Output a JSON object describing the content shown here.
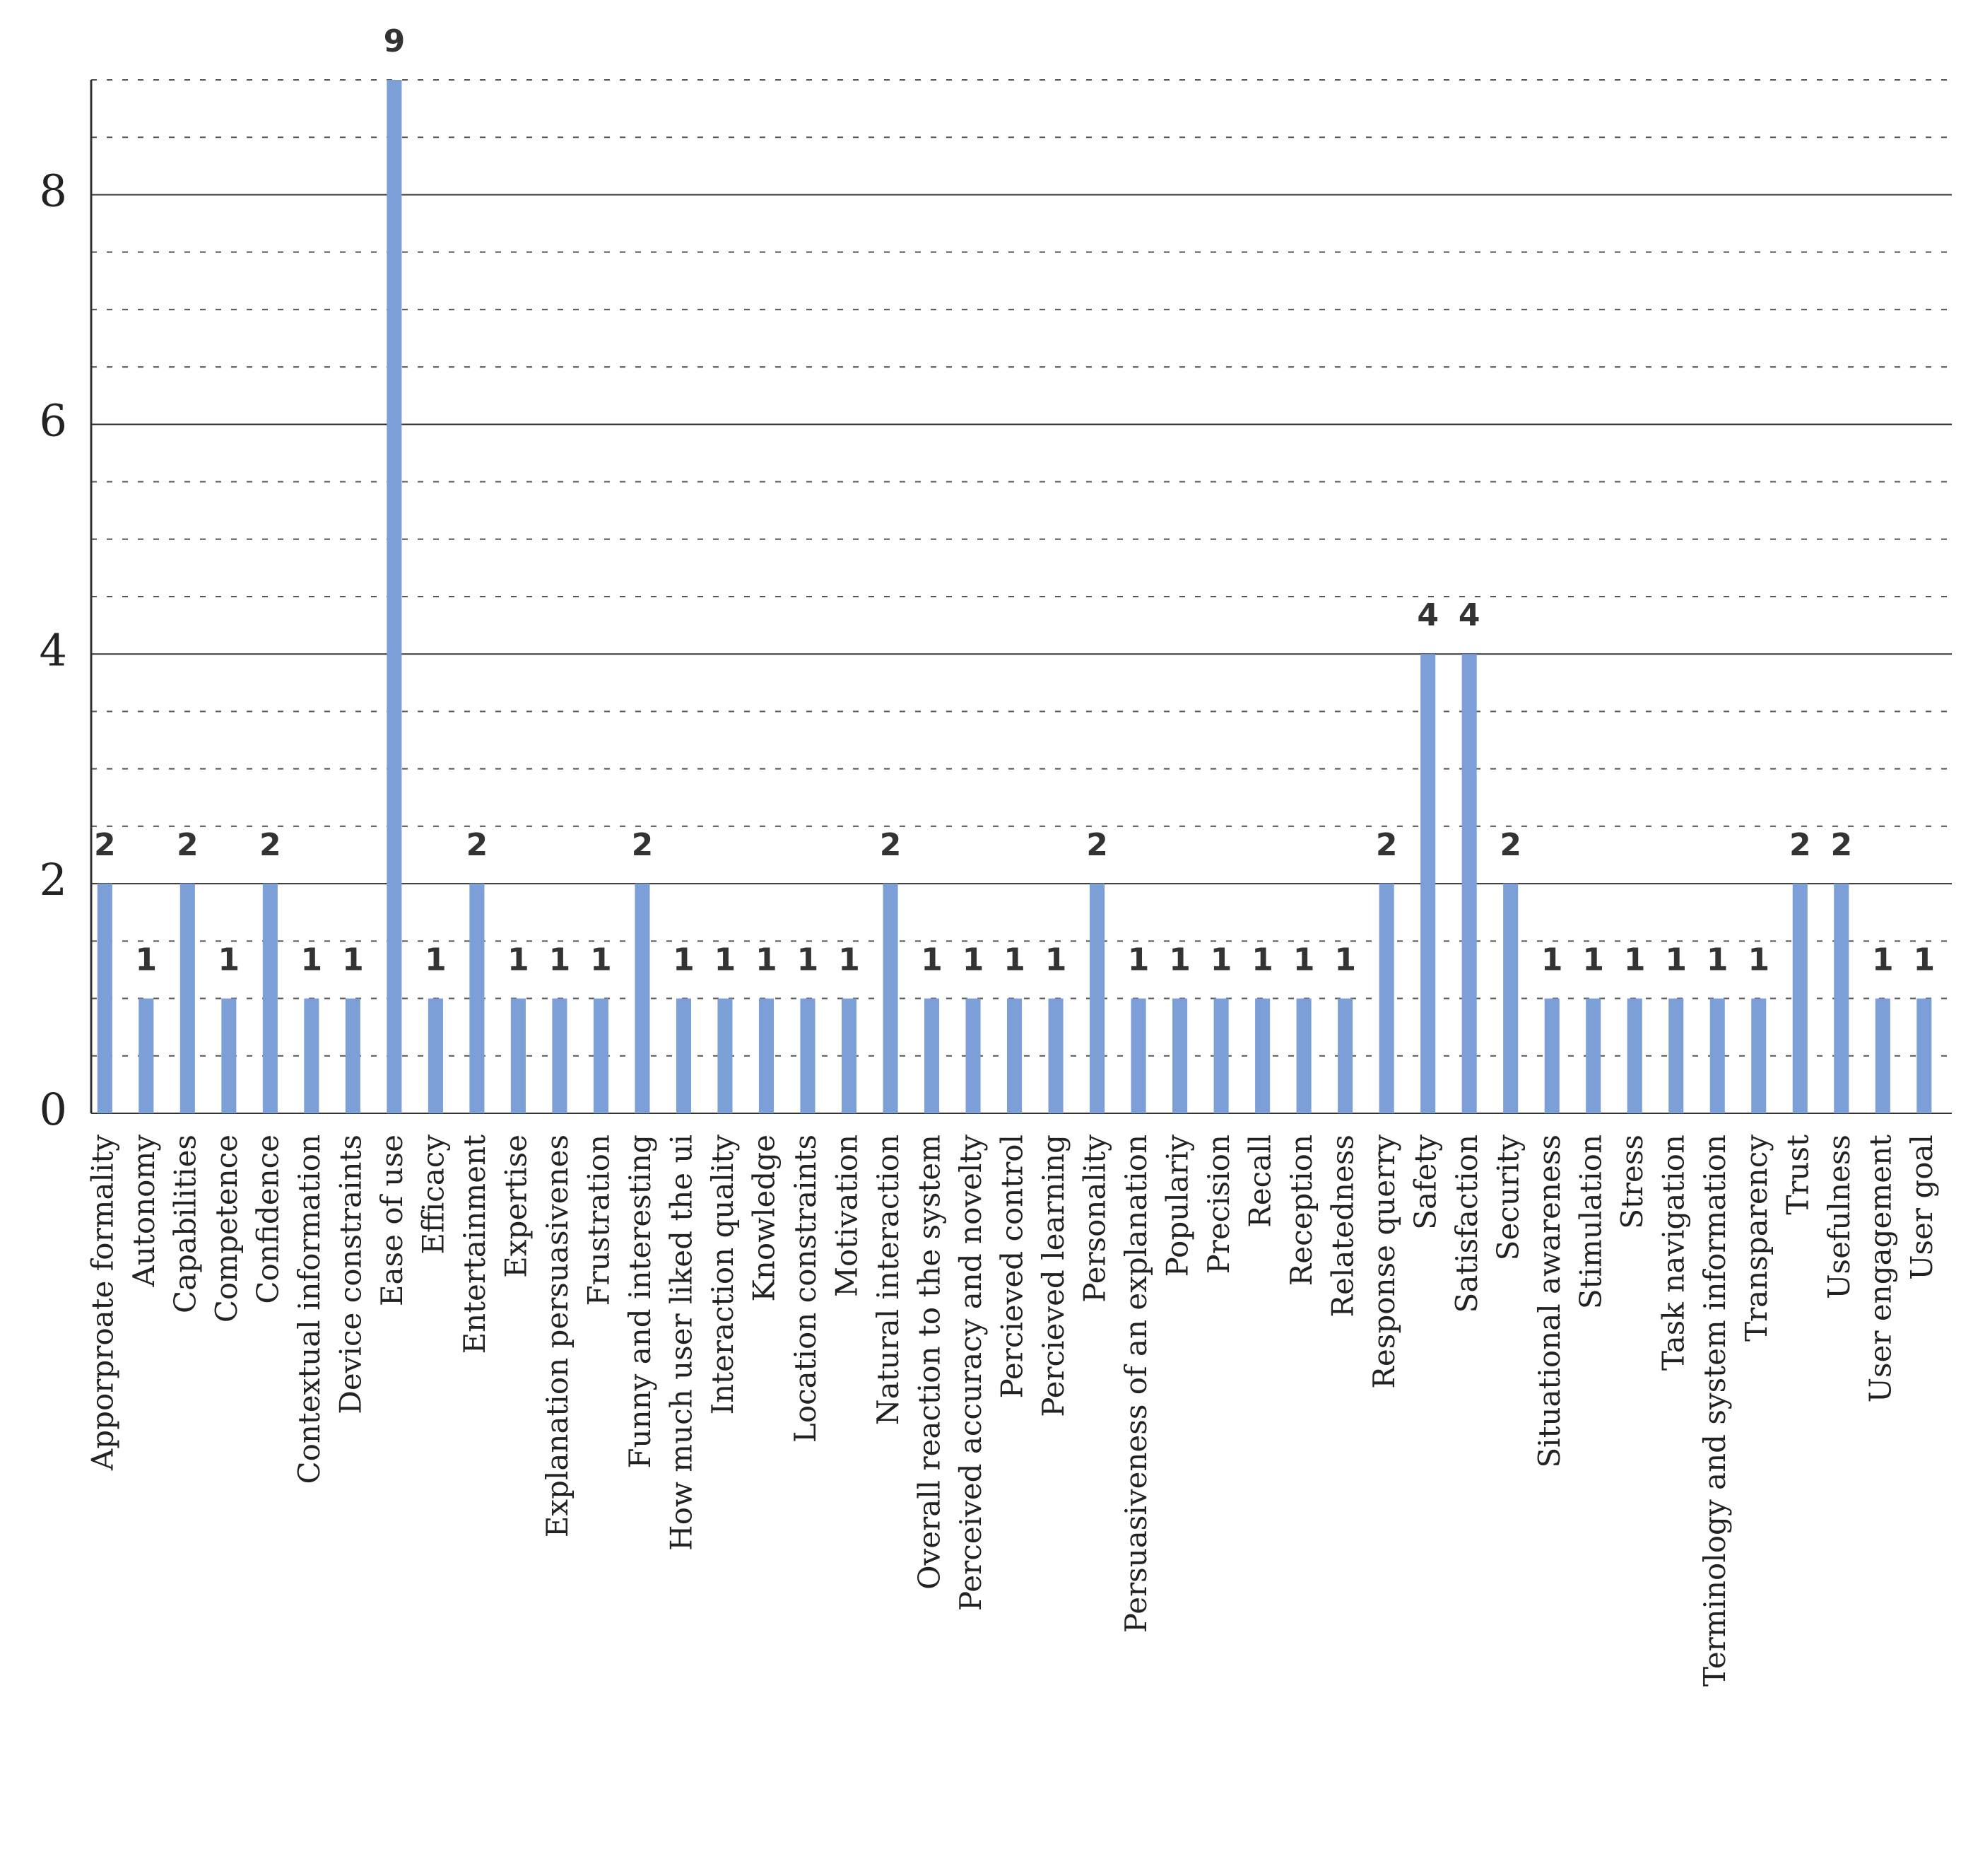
{
  "chart_data": {
    "type": "bar",
    "categories": [
      "Apporproate formality",
      "Autonomy",
      "Capabilities",
      "Competence",
      "Confidence",
      "Contextual information",
      "Device constraints",
      "Ease of use",
      "Efficacy",
      "Entertainment",
      "Expertise",
      "Explanation persuasivenes",
      "Frustration",
      "Funny and interesting",
      "How much user liked the ui",
      "Interaction quality",
      "Knowledge",
      "Location constraints",
      "Motivation",
      "Natural interaction",
      "Overall reaction to the system",
      "Perceived accuracy and novelty",
      "Percieved control",
      "Percieved learning",
      "Personality",
      "Persuasiveness of an explanation",
      "Populariy",
      "Precision",
      "Recall",
      "Reception",
      "Relatedness",
      "Response querry",
      "Safety",
      "Satisfaction",
      "Security",
      "Situational awareness",
      "Stimulation",
      "Stress",
      "Task navigation",
      "Terminology and system information",
      "Transparency",
      "Trust",
      "Usefulness",
      "User engagement",
      "User goal"
    ],
    "values": [
      2,
      1,
      2,
      1,
      2,
      1,
      1,
      9,
      1,
      2,
      1,
      1,
      1,
      2,
      1,
      1,
      1,
      1,
      1,
      2,
      1,
      1,
      1,
      1,
      2,
      1,
      1,
      1,
      1,
      1,
      1,
      2,
      4,
      4,
      2,
      1,
      1,
      1,
      1,
      1,
      1,
      2,
      2,
      1,
      1
    ],
    "color": "#7b9fd6",
    "ylim": [
      0,
      9
    ],
    "yticks": [
      0,
      2,
      4,
      6,
      8
    ],
    "grid": true,
    "data_labels": true
  }
}
